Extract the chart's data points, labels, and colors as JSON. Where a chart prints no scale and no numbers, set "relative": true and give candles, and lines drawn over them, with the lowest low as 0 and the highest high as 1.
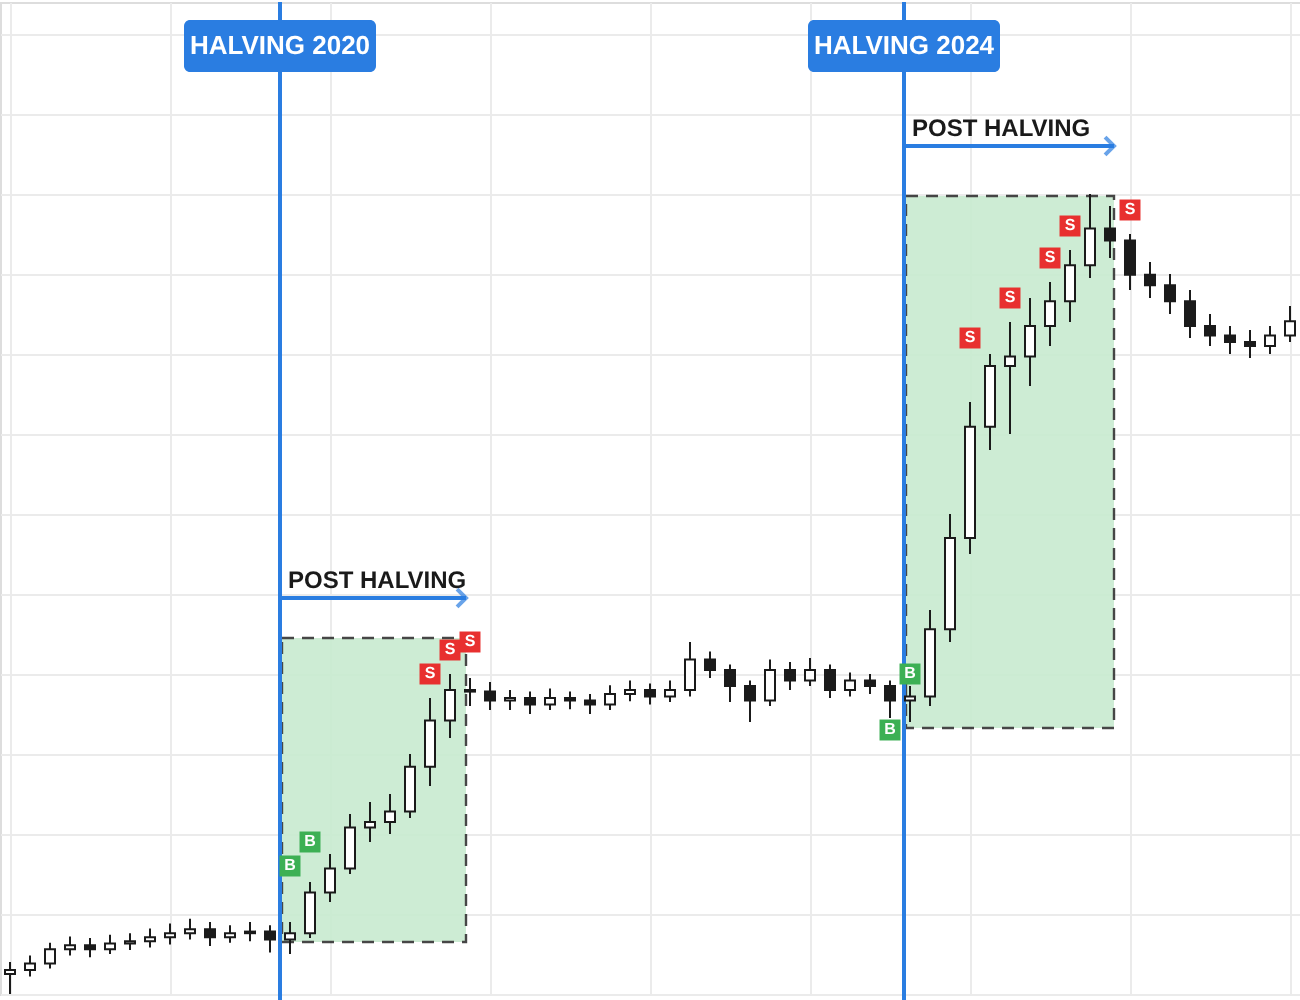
{
  "chart_data": {
    "type": "candlestick",
    "relative": true,
    "tick_labels": false,
    "grid": true,
    "legend": false,
    "color": "#1a1a1a",
    "categories": [
      null,
      null,
      null,
      null,
      null,
      null,
      null,
      null,
      null,
      null,
      null,
      null,
      null,
      null,
      null,
      null,
      null,
      null,
      null,
      null,
      null,
      null,
      null,
      null,
      null,
      null,
      null,
      null,
      null,
      null,
      null,
      null,
      null,
      null,
      null,
      null,
      null,
      null,
      null,
      null,
      null,
      null,
      null,
      null,
      null,
      null,
      null,
      null,
      null,
      null,
      null,
      null,
      null,
      null,
      null,
      null,
      null,
      null,
      null,
      null,
      null,
      null,
      null,
      null,
      null
    ],
    "ohlc": [
      [
        0.025,
        0.04,
        0,
        0.03
      ],
      [
        0.03,
        0.048,
        0.022,
        0.038
      ],
      [
        0.038,
        0.064,
        0.032,
        0.056
      ],
      [
        0.056,
        0.072,
        0.048,
        0.061
      ],
      [
        0.061,
        0.07,
        0.046,
        0.056
      ],
      [
        0.056,
        0.074,
        0.05,
        0.063
      ],
      [
        0.063,
        0.076,
        0.055,
        0.066
      ],
      [
        0.066,
        0.082,
        0.058,
        0.071
      ],
      [
        0.071,
        0.088,
        0.062,
        0.076
      ],
      [
        0.076,
        0.094,
        0.068,
        0.081
      ],
      [
        0.081,
        0.09,
        0.06,
        0.071
      ],
      [
        0.071,
        0.086,
        0.064,
        0.076
      ],
      [
        0.076,
        0.09,
        0.066,
        0.078
      ],
      [
        0.078,
        0.086,
        0.052,
        0.068
      ],
      [
        0.068,
        0.09,
        0.05,
        0.076
      ],
      [
        0.076,
        0.14,
        0.07,
        0.127
      ],
      [
        0.127,
        0.175,
        0.115,
        0.157
      ],
      [
        0.157,
        0.225,
        0.15,
        0.208
      ],
      [
        0.208,
        0.24,
        0.19,
        0.215
      ],
      [
        0.215,
        0.25,
        0.2,
        0.228
      ],
      [
        0.228,
        0.3,
        0.22,
        0.284
      ],
      [
        0.284,
        0.37,
        0.26,
        0.342
      ],
      [
        0.342,
        0.4,
        0.32,
        0.38
      ],
      [
        0.38,
        0.395,
        0.36,
        0.378
      ],
      [
        0.378,
        0.39,
        0.355,
        0.367
      ],
      [
        0.367,
        0.38,
        0.355,
        0.37
      ],
      [
        0.37,
        0.378,
        0.35,
        0.362
      ],
      [
        0.362,
        0.382,
        0.355,
        0.37
      ],
      [
        0.37,
        0.378,
        0.356,
        0.367
      ],
      [
        0.367,
        0.375,
        0.35,
        0.362
      ],
      [
        0.362,
        0.386,
        0.355,
        0.375
      ],
      [
        0.375,
        0.392,
        0.366,
        0.38
      ],
      [
        0.38,
        0.388,
        0.362,
        0.372
      ],
      [
        0.372,
        0.392,
        0.365,
        0.38
      ],
      [
        0.38,
        0.44,
        0.372,
        0.418
      ],
      [
        0.418,
        0.428,
        0.395,
        0.405
      ],
      [
        0.405,
        0.412,
        0.365,
        0.385
      ],
      [
        0.385,
        0.392,
        0.34,
        0.367
      ],
      [
        0.367,
        0.418,
        0.36,
        0.405
      ],
      [
        0.405,
        0.415,
        0.38,
        0.392
      ],
      [
        0.392,
        0.42,
        0.385,
        0.405
      ],
      [
        0.405,
        0.412,
        0.37,
        0.38
      ],
      [
        0.38,
        0.402,
        0.372,
        0.392
      ],
      [
        0.392,
        0.4,
        0.375,
        0.385
      ],
      [
        0.385,
        0.392,
        0.345,
        0.367
      ],
      [
        0.367,
        0.385,
        0.34,
        0.372
      ],
      [
        0.372,
        0.48,
        0.36,
        0.456
      ],
      [
        0.456,
        0.6,
        0.44,
        0.57
      ],
      [
        0.57,
        0.74,
        0.55,
        0.709
      ],
      [
        0.709,
        0.8,
        0.68,
        0.785
      ],
      [
        0.785,
        0.84,
        0.7,
        0.797
      ],
      [
        0.797,
        0.87,
        0.76,
        0.835
      ],
      [
        0.835,
        0.89,
        0.81,
        0.866
      ],
      [
        0.866,
        0.93,
        0.84,
        0.911
      ],
      [
        0.911,
        1,
        0.895,
        0.957
      ],
      [
        0.957,
        0.985,
        0.92,
        0.942
      ],
      [
        0.942,
        0.95,
        0.88,
        0.899
      ],
      [
        0.899,
        0.915,
        0.87,
        0.886
      ],
      [
        0.886,
        0.9,
        0.85,
        0.866
      ],
      [
        0.866,
        0.88,
        0.82,
        0.835
      ],
      [
        0.835,
        0.85,
        0.81,
        0.823
      ],
      [
        0.823,
        0.835,
        0.8,
        0.815
      ],
      [
        0.815,
        0.83,
        0.795,
        0.81
      ],
      [
        0.81,
        0.835,
        0.8,
        0.823
      ],
      [
        0.823,
        0.86,
        0.815,
        0.841
      ]
    ],
    "series": [
      {
        "name": "B",
        "type": "scatter",
        "marker": "square",
        "color": "#3cb054",
        "values": [
          null,
          null,
          null,
          null,
          null,
          null,
          null,
          null,
          null,
          null,
          null,
          null,
          null,
          null,
          0.16,
          0.19,
          null,
          null,
          null,
          null,
          null,
          null,
          null,
          null,
          null,
          null,
          null,
          null,
          null,
          null,
          null,
          null,
          null,
          null,
          null,
          null,
          null,
          null,
          null,
          null,
          null,
          null,
          null,
          null,
          0.33,
          0.4,
          null,
          null,
          null,
          null,
          null,
          null,
          null,
          null,
          null,
          null,
          null,
          null,
          null,
          null,
          null,
          null,
          null,
          null,
          null
        ]
      },
      {
        "name": "S",
        "type": "scatter",
        "marker": "square",
        "color": "#e8302f",
        "values": [
          null,
          null,
          null,
          null,
          null,
          null,
          null,
          null,
          null,
          null,
          null,
          null,
          null,
          null,
          null,
          null,
          null,
          null,
          null,
          null,
          null,
          0.4,
          0.43,
          0.44,
          null,
          null,
          null,
          null,
          null,
          null,
          null,
          null,
          null,
          null,
          null,
          null,
          null,
          null,
          null,
          null,
          null,
          null,
          null,
          null,
          null,
          null,
          null,
          null,
          0.82,
          null,
          0.87,
          null,
          0.92,
          0.96,
          null,
          null,
          0.98,
          null,
          null,
          null,
          null,
          null,
          null,
          null,
          null
        ]
      }
    ],
    "annotations": [
      "HALVING 2020",
      "HALVING 2024",
      "POST HALVING",
      "POST HALVING"
    ]
  }
}
